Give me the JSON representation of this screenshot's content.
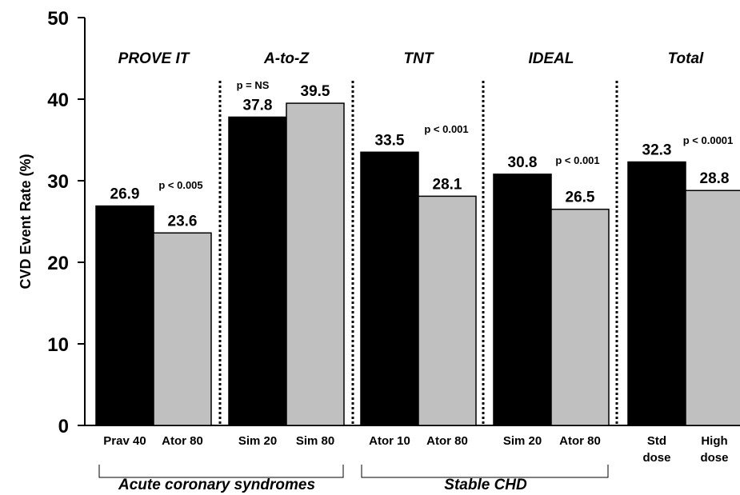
{
  "chart_data": {
    "type": "bar",
    "ylabel": "CVD Event Rate (%)",
    "ylim": [
      0,
      50
    ],
    "yticks": [
      "0",
      "10",
      "20",
      "30",
      "40",
      "50"
    ],
    "colors": {
      "standard": "#000000",
      "high": "#c0c0c0"
    },
    "trials": [
      {
        "name": "PROVE IT",
        "p": "p < 0.005",
        "bars": [
          {
            "label": "Prav 40",
            "value": 26.9,
            "value_label": "26.9",
            "kind": "standard"
          },
          {
            "label": "Ator 80",
            "value": 23.6,
            "value_label": "23.6",
            "kind": "high"
          }
        ]
      },
      {
        "name": "A-to-Z",
        "p": "p = NS",
        "bars": [
          {
            "label": "Sim 20",
            "value": 37.8,
            "value_label": "37.8",
            "kind": "standard"
          },
          {
            "label": "Sim 80",
            "value": 39.5,
            "value_label": "39.5",
            "kind": "high"
          }
        ]
      },
      {
        "name": "TNT",
        "p": "p < 0.001",
        "bars": [
          {
            "label": "Ator 10",
            "value": 33.5,
            "value_label": "33.5",
            "kind": "standard"
          },
          {
            "label": "Ator 80",
            "value": 28.1,
            "value_label": "28.1",
            "kind": "high"
          }
        ]
      },
      {
        "name": "IDEAL",
        "p": "p < 0.001",
        "bars": [
          {
            "label": "Sim 20",
            "value": 30.8,
            "value_label": "30.8",
            "kind": "standard"
          },
          {
            "label": "Ator 80",
            "value": 26.5,
            "value_label": "26.5",
            "kind": "high"
          }
        ]
      },
      {
        "name": "Total",
        "p": "p < 0.0001",
        "bars": [
          {
            "label": "Std\ndose",
            "value": 32.3,
            "value_label": "32.3",
            "kind": "standard"
          },
          {
            "label": "High\ndose",
            "value": 28.8,
            "value_label": "28.8",
            "kind": "high"
          }
        ]
      }
    ],
    "groups": [
      "Acute coronary syndromes",
      "Stable CHD"
    ]
  }
}
